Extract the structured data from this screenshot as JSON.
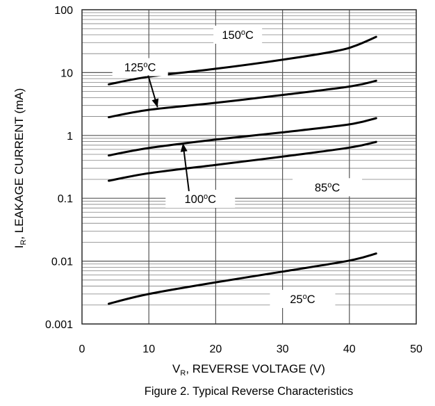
{
  "chart_data": {
    "type": "line",
    "caption": "Figure 2. Typical Reverse Characteristics",
    "xlabel": {
      "main": "V",
      "sub": "R",
      "rest": ", REVERSE VOLTAGE (V)"
    },
    "ylabel": {
      "main": "I",
      "sub": "R",
      "rest": ", LEAKAGE CURRENT (mA)"
    },
    "xlim": [
      0,
      50
    ],
    "ylim": [
      0.001,
      100
    ],
    "yscale": "log",
    "grid": true,
    "xticks": [
      "0",
      "10",
      "20",
      "30",
      "40",
      "50"
    ],
    "yticks": [
      "0.001",
      "0.01",
      "0.1",
      "1",
      "10",
      "100"
    ],
    "series": [
      {
        "name": "150",
        "x": [
          4,
          10,
          20,
          30,
          38,
          41,
          44
        ],
        "y": [
          6.5,
          8.6,
          11.5,
          16,
          22,
          27,
          37
        ]
      },
      {
        "name": "125",
        "x": [
          4,
          10,
          20,
          30,
          40,
          44
        ],
        "y": [
          1.95,
          2.55,
          3.3,
          4.4,
          6.0,
          7.4
        ]
      },
      {
        "name": "100",
        "x": [
          4,
          10,
          20,
          30,
          40,
          44
        ],
        "y": [
          0.48,
          0.63,
          0.86,
          1.12,
          1.5,
          1.88
        ]
      },
      {
        "name": "85",
        "x": [
          4,
          10,
          20,
          30,
          40,
          44
        ],
        "y": [
          0.19,
          0.25,
          0.34,
          0.46,
          0.64,
          0.79
        ]
      },
      {
        "name": "25",
        "x": [
          4,
          10,
          20,
          30,
          40,
          44
        ],
        "y": [
          0.0021,
          0.003,
          0.0046,
          0.0068,
          0.0102,
          0.0132
        ]
      }
    ],
    "labels": {
      "c150": {
        "num": "150",
        "sup": "o",
        "unit": "C"
      },
      "c125": {
        "num": "125",
        "sup": "o",
        "unit": "C"
      },
      "c100": {
        "num": "100",
        "sup": "o",
        "unit": "C"
      },
      "c85": {
        "num": "85",
        "sup": "o",
        "unit": "C"
      },
      "c25": {
        "num": "25",
        "sup": "o",
        "unit": "C"
      }
    },
    "colors": {
      "line": "#000000",
      "grid": "#7f7f7f",
      "background": "#ffffff"
    }
  }
}
